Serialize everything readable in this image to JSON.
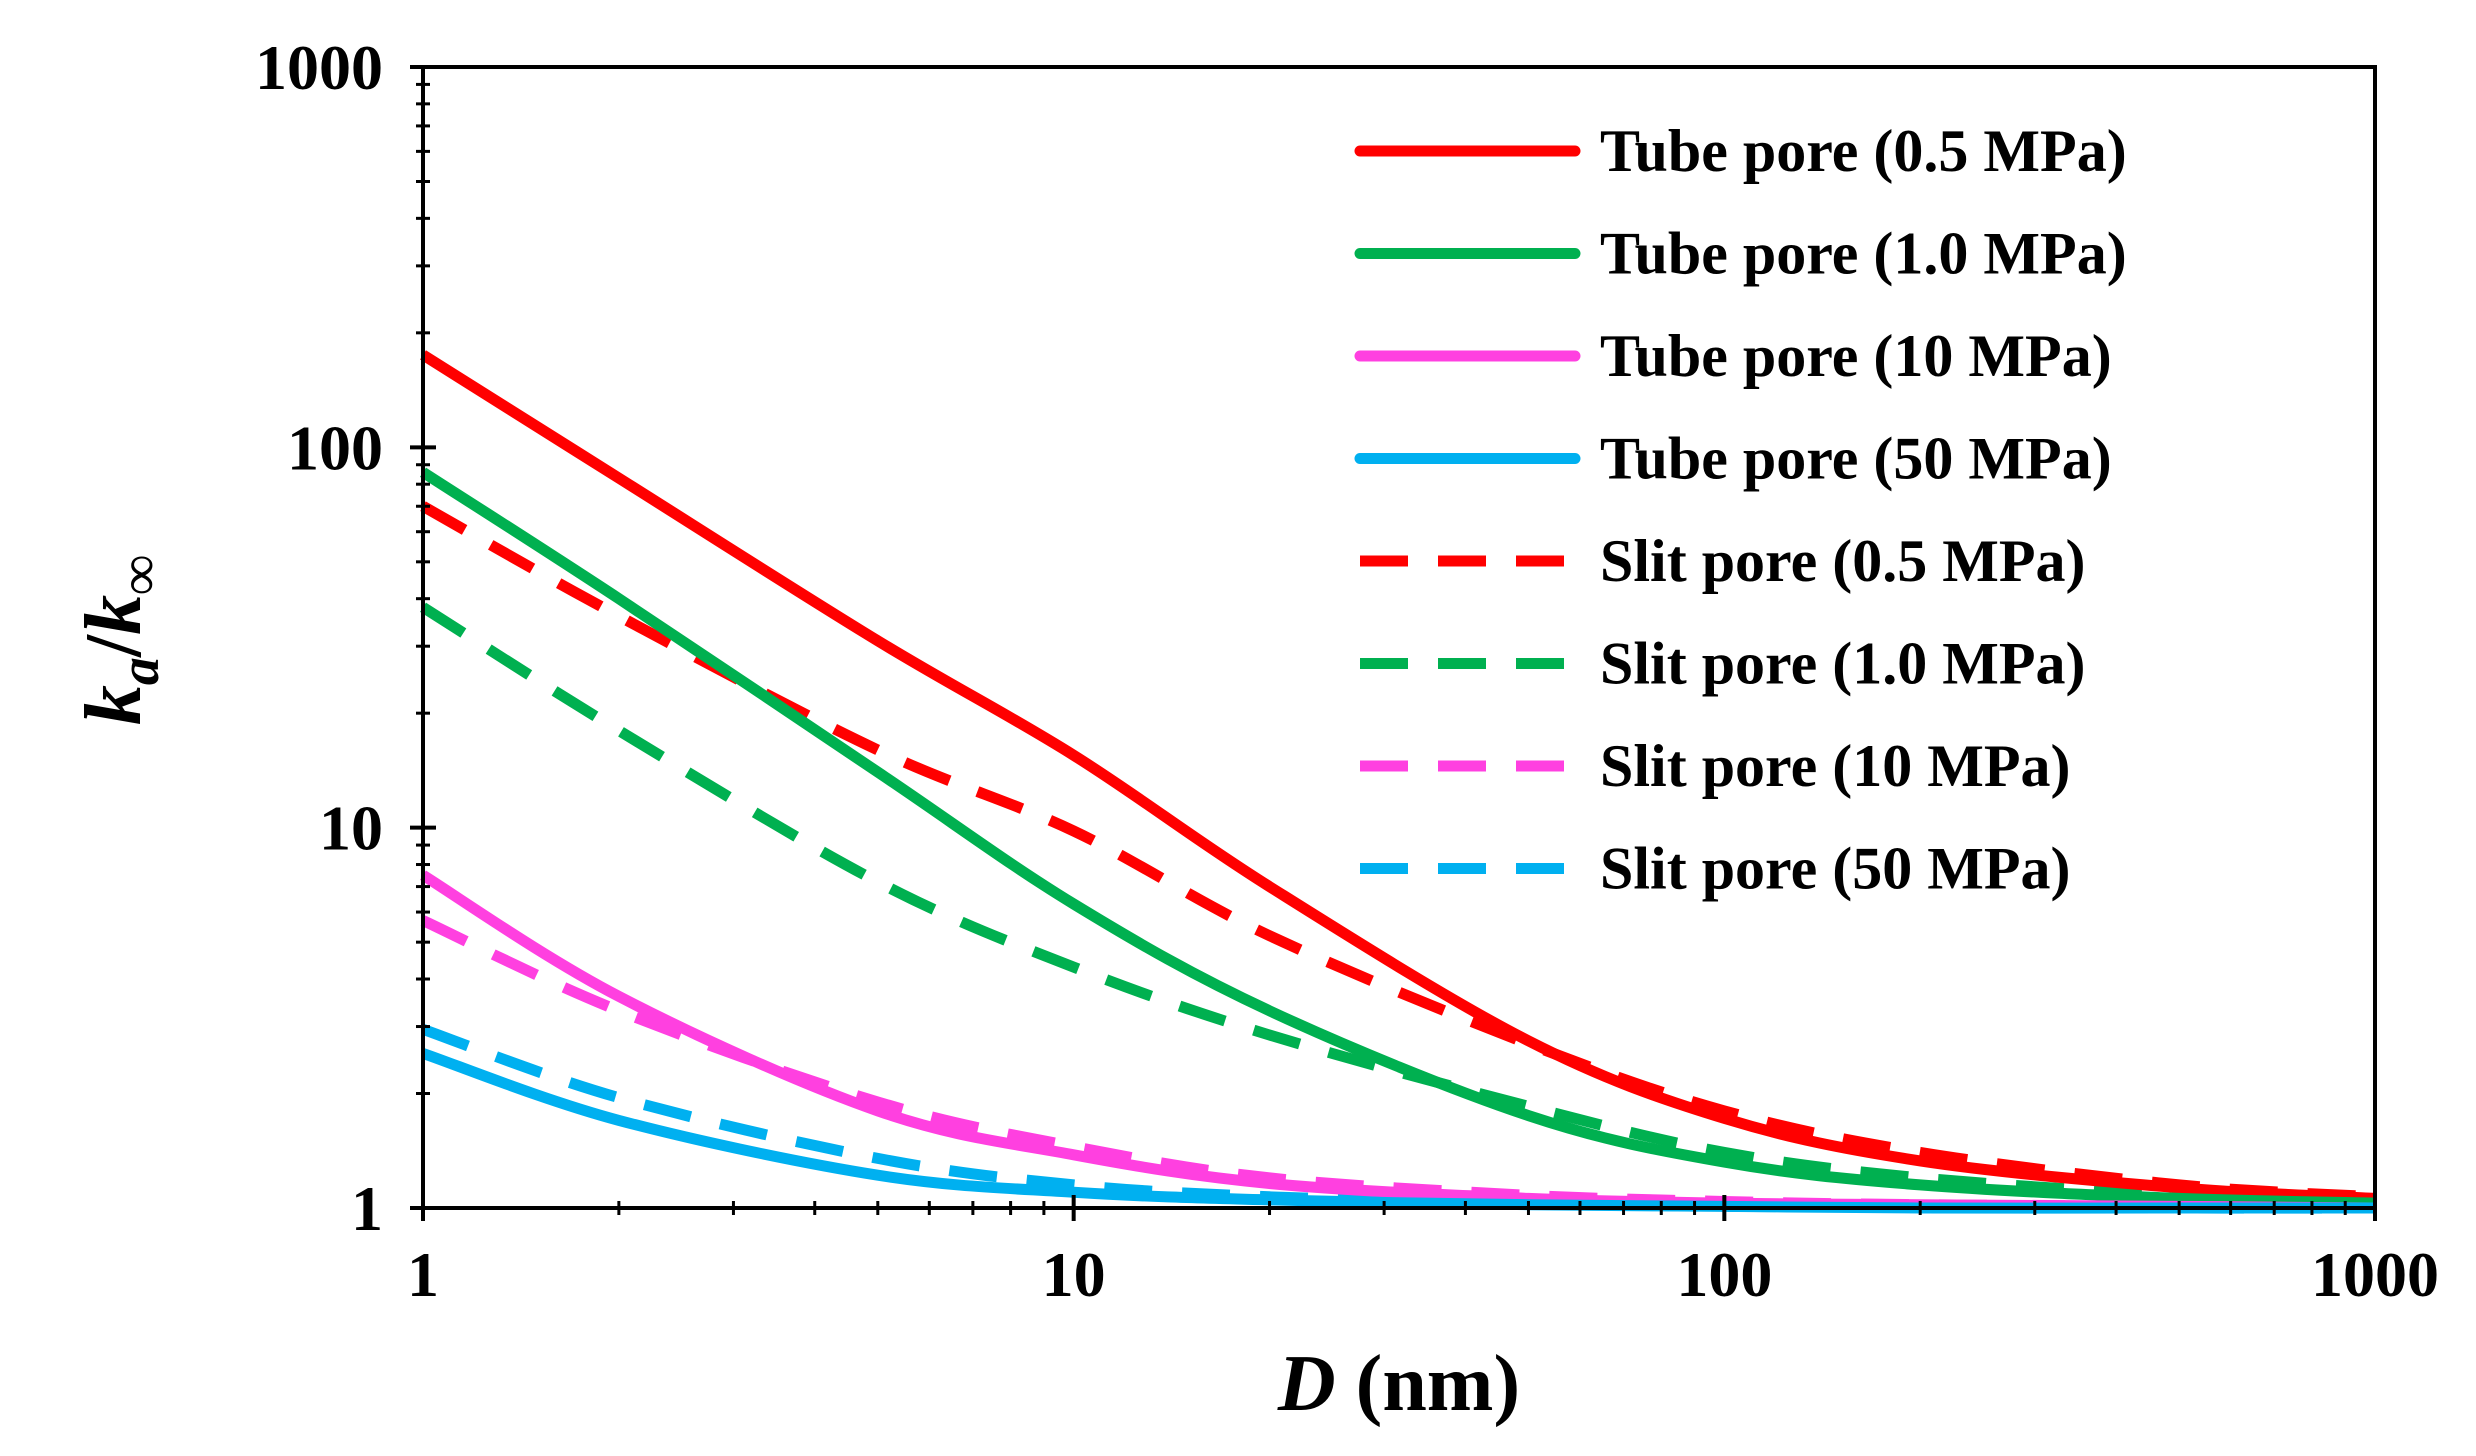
{
  "chart_data": {
    "type": "line",
    "x_scale": "log",
    "y_scale": "log",
    "xlim": [
      1,
      1000
    ],
    "ylim": [
      1,
      1000
    ],
    "x_ticks": [
      "1",
      "10",
      "100",
      "1000"
    ],
    "y_ticks": [
      "1",
      "10",
      "100",
      "1000"
    ],
    "xlabel": {
      "symbol": "D",
      "unit": " (nm)"
    },
    "ylabel": {
      "k": "k",
      "a": "a",
      "slash": "/",
      "inf": "∞"
    },
    "legend_position": "top-right",
    "series": [
      {
        "name": "Tube pore (0.5 MPa)",
        "color": "#ff0000",
        "style": "solid",
        "x": [
          1,
          2,
          5,
          10,
          20,
          50,
          100,
          200,
          500,
          1000
        ],
        "y": [
          175,
          83,
          31,
          15.5,
          7.0,
          2.75,
          1.72,
          1.33,
          1.13,
          1.06
        ]
      },
      {
        "name": "Tube pore (1.0 MPa)",
        "color": "#00b050",
        "style": "solid",
        "x": [
          1,
          2,
          5,
          10,
          20,
          50,
          100,
          200,
          500,
          1000
        ],
        "y": [
          86,
          40,
          14,
          6.3,
          3.3,
          1.75,
          1.32,
          1.15,
          1.06,
          1.03
        ]
      },
      {
        "name": "Tube pore (10 MPa)",
        "color": "#ff40e0",
        "style": "solid",
        "x": [
          1,
          2,
          5,
          10,
          20,
          50,
          100,
          200,
          500,
          1000
        ],
        "y": [
          7.5,
          3.6,
          1.8,
          1.38,
          1.16,
          1.06,
          1.03,
          1.02,
          1.01,
          1.0
        ]
      },
      {
        "name": "Tube pore (50 MPa)",
        "color": "#00b0f0",
        "style": "solid",
        "x": [
          1,
          2,
          5,
          10,
          20,
          50,
          100,
          200,
          500,
          1000
        ],
        "y": [
          2.55,
          1.7,
          1.22,
          1.1,
          1.05,
          1.02,
          1.01,
          1.0,
          1.0,
          1.0
        ]
      },
      {
        "name": "Slit pore (0.5 MPa)",
        "color": "#ff0000",
        "style": "dashed",
        "x": [
          1,
          2,
          5,
          10,
          20,
          50,
          100,
          200,
          500,
          1000
        ],
        "y": [
          70,
          36,
          16,
          9.8,
          5.2,
          2.7,
          1.8,
          1.4,
          1.15,
          1.07
        ]
      },
      {
        "name": "Slit pore (1.0 MPa)",
        "color": "#00b050",
        "style": "dashed",
        "x": [
          1,
          2,
          5,
          10,
          20,
          50,
          100,
          200,
          500,
          1000
        ],
        "y": [
          38,
          18,
          7.2,
          4.3,
          2.85,
          1.85,
          1.4,
          1.2,
          1.08,
          1.04
        ]
      },
      {
        "name": "Slit pore (10 MPa)",
        "color": "#ff40e0",
        "style": "dashed",
        "x": [
          1,
          2,
          5,
          10,
          20,
          50,
          100,
          200,
          500,
          1000
        ],
        "y": [
          5.7,
          3.3,
          1.9,
          1.45,
          1.2,
          1.08,
          1.04,
          1.02,
          1.01,
          1.0
        ]
      },
      {
        "name": "Slit pore (50 MPa)",
        "color": "#00b0f0",
        "style": "dashed",
        "x": [
          1,
          2,
          5,
          10,
          20,
          50,
          100,
          200,
          500,
          1000
        ],
        "y": [
          2.95,
          1.95,
          1.35,
          1.15,
          1.07,
          1.03,
          1.01,
          1.01,
          1.0,
          1.0
        ]
      }
    ]
  }
}
